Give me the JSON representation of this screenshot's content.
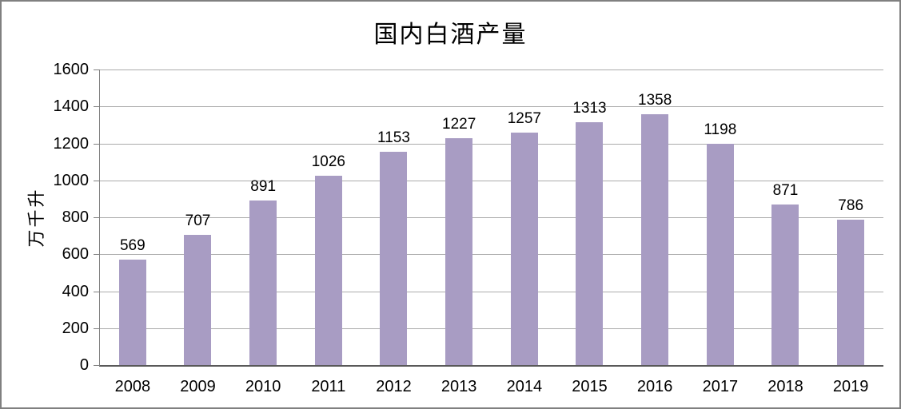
{
  "chart_data": {
    "type": "bar",
    "title": "国内白酒产量",
    "xlabel": "",
    "ylabel": "万千升",
    "categories": [
      "2008",
      "2009",
      "2010",
      "2011",
      "2012",
      "2013",
      "2014",
      "2015",
      "2016",
      "2017",
      "2018",
      "2019"
    ],
    "values": [
      569,
      707,
      891,
      1026,
      1153,
      1227,
      1257,
      1313,
      1358,
      1198,
      871,
      786
    ],
    "ylim": [
      0,
      1600
    ],
    "ytick_step": 200,
    "ytick_labels": [
      "0",
      "200",
      "400",
      "600",
      "800",
      "1000",
      "1200",
      "1400",
      "1600"
    ],
    "grid": true,
    "legend": false,
    "data_labels": true
  },
  "colors": {
    "bar": "#A89CC3",
    "gridline": "#ABABAB",
    "y_axis_line": "#808080",
    "x_axis_line": "#595959",
    "figure_border": "#808080",
    "text": "#000000",
    "background": "#FFFFFF"
  }
}
